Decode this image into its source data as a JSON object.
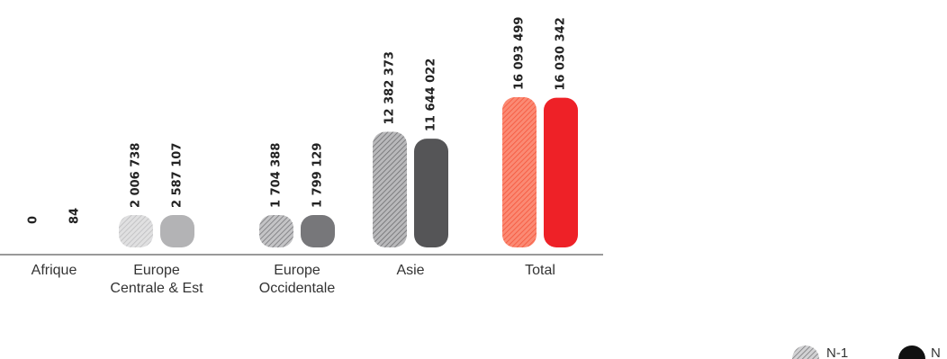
{
  "chart_data": {
    "type": "bar",
    "categories": [
      "Afrique",
      "Europe\nCentrale & Est",
      "Europe\nOccidentale",
      "Asie",
      "Total"
    ],
    "series": [
      {
        "name": "N-1",
        "values": [
          0,
          2006738,
          1704388,
          12382373,
          16093499
        ],
        "labels": [
          "0",
          "2 006 738",
          "1 704 388",
          "12 382 373",
          "16 093 499"
        ]
      },
      {
        "name": "N",
        "values": [
          84,
          2587107,
          1799129,
          11644022,
          16030342
        ],
        "labels": [
          "84",
          "2 587 107",
          "1 799 129",
          "11 644 022",
          "16 030 342"
        ]
      }
    ],
    "ylim": [
      0,
      16093499
    ],
    "grid": false,
    "legend": "bottom-right",
    "colors": {
      "afrique": "#bdbdbf",
      "europe_centrale": "#b3b3b5",
      "europe_occidentale": "#77777a",
      "asie": "#555557",
      "total": "#ee2127",
      "total_hatch_base": "#f5553a"
    }
  }
}
